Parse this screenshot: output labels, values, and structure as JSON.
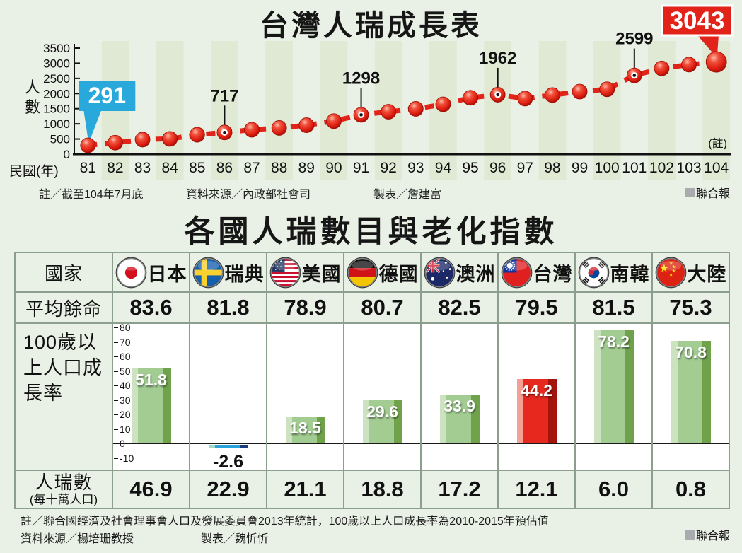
{
  "brand": "聯合報",
  "chart1": {
    "title": "台灣人瑞成長表",
    "y_axis_title": "人\n數",
    "x_axis_title": "民國(年)",
    "note_ref": "(註)",
    "footnote": "註／截至104年7月底",
    "source": "資料來源／內政部社會司",
    "credit": "製表／詹建富"
  },
  "section2": {
    "title": "各國人瑞數目與老化指數",
    "row_labels": {
      "country": "國家",
      "life_expectancy": "平均餘命",
      "growth_rate": "100歲以上人口成長率",
      "centenarians": "人瑞數",
      "centenarians_unit": "(每十萬人口)"
    },
    "footnote": "註／聯合國經濟及社會理事會人口及發展委員會2013年統計，100歲以上人口成長率為2010-2015年預估值",
    "source": "資料來源／楊培珊教授",
    "credit": "製表／魏忻忻"
  },
  "table": {
    "countries": [
      "日本",
      "瑞典",
      "美國",
      "德國",
      "澳洲",
      "台灣",
      "南韓",
      "大陸"
    ],
    "life_expectancy": [
      "83.6",
      "81.8",
      "78.9",
      "80.7",
      "82.5",
      "79.5",
      "81.5",
      "75.3"
    ],
    "centenarians_per_100k": [
      "46.9",
      "22.9",
      "21.1",
      "18.8",
      "17.2",
      "12.1",
      "6.0",
      "0.8"
    ]
  },
  "chart_data": [
    {
      "type": "line",
      "title": "台灣人瑞成長表",
      "xlabel": "民國(年)",
      "ylabel": "人數",
      "x": [
        81,
        82,
        83,
        84,
        85,
        86,
        87,
        88,
        89,
        90,
        91,
        92,
        93,
        94,
        95,
        96,
        97,
        98,
        99,
        100,
        101,
        102,
        103,
        104
      ],
      "values": [
        291,
        380,
        480,
        505,
        640,
        717,
        805,
        865,
        955,
        1090,
        1298,
        1400,
        1495,
        1645,
        1860,
        1962,
        1835,
        1950,
        2065,
        2140,
        2599,
        2830,
        2955,
        3043
      ],
      "ylim": [
        0,
        3500
      ],
      "y_ticks": [
        0,
        500,
        1000,
        1500,
        2000,
        2500,
        3000,
        3500
      ],
      "grid": "alternating-column-stripes",
      "legend": "none",
      "annotations": [
        {
          "x": 81,
          "label": "291",
          "style": "callout-cyan"
        },
        {
          "x": 86,
          "label": "717",
          "style": "stem"
        },
        {
          "x": 91,
          "label": "1298",
          "style": "stem"
        },
        {
          "x": 96,
          "label": "1962",
          "style": "stem"
        },
        {
          "x": 101,
          "label": "2599",
          "style": "stem"
        },
        {
          "x": 104,
          "label": "3043",
          "style": "callout-red"
        }
      ]
    },
    {
      "type": "bar",
      "title": "100歲以上人口成長率",
      "categories": [
        "日本",
        "瑞典",
        "美國",
        "德國",
        "澳洲",
        "台灣",
        "南韓",
        "大陸"
      ],
      "values": [
        51.8,
        -2.6,
        18.5,
        29.6,
        33.9,
        44.2,
        78.2,
        70.8
      ],
      "labels": [
        "51.8",
        "-2.6",
        "18.5",
        "29.6",
        "33.9",
        "44.2",
        "78.2",
        "70.8"
      ],
      "bar_styles": [
        "green",
        "blue",
        "green",
        "green",
        "green",
        "red",
        "green",
        "green"
      ],
      "ylim": [
        -10,
        80
      ],
      "y_ticks": [
        80,
        70,
        60,
        50,
        40,
        30,
        20,
        10,
        0,
        -10
      ],
      "legend": "none"
    }
  ],
  "colors": {
    "page_bg": "#e9f0e5",
    "stripe": "#dfe9d4",
    "accent_red": "#e2231a",
    "accent_cyan": "#29a8dc",
    "bar_green": "#a3cc93",
    "bar_red": "#e6281e",
    "bar_blue": "#29a3dc",
    "table_border": "#8c9e8e",
    "brand_grey": "#a9abae"
  }
}
